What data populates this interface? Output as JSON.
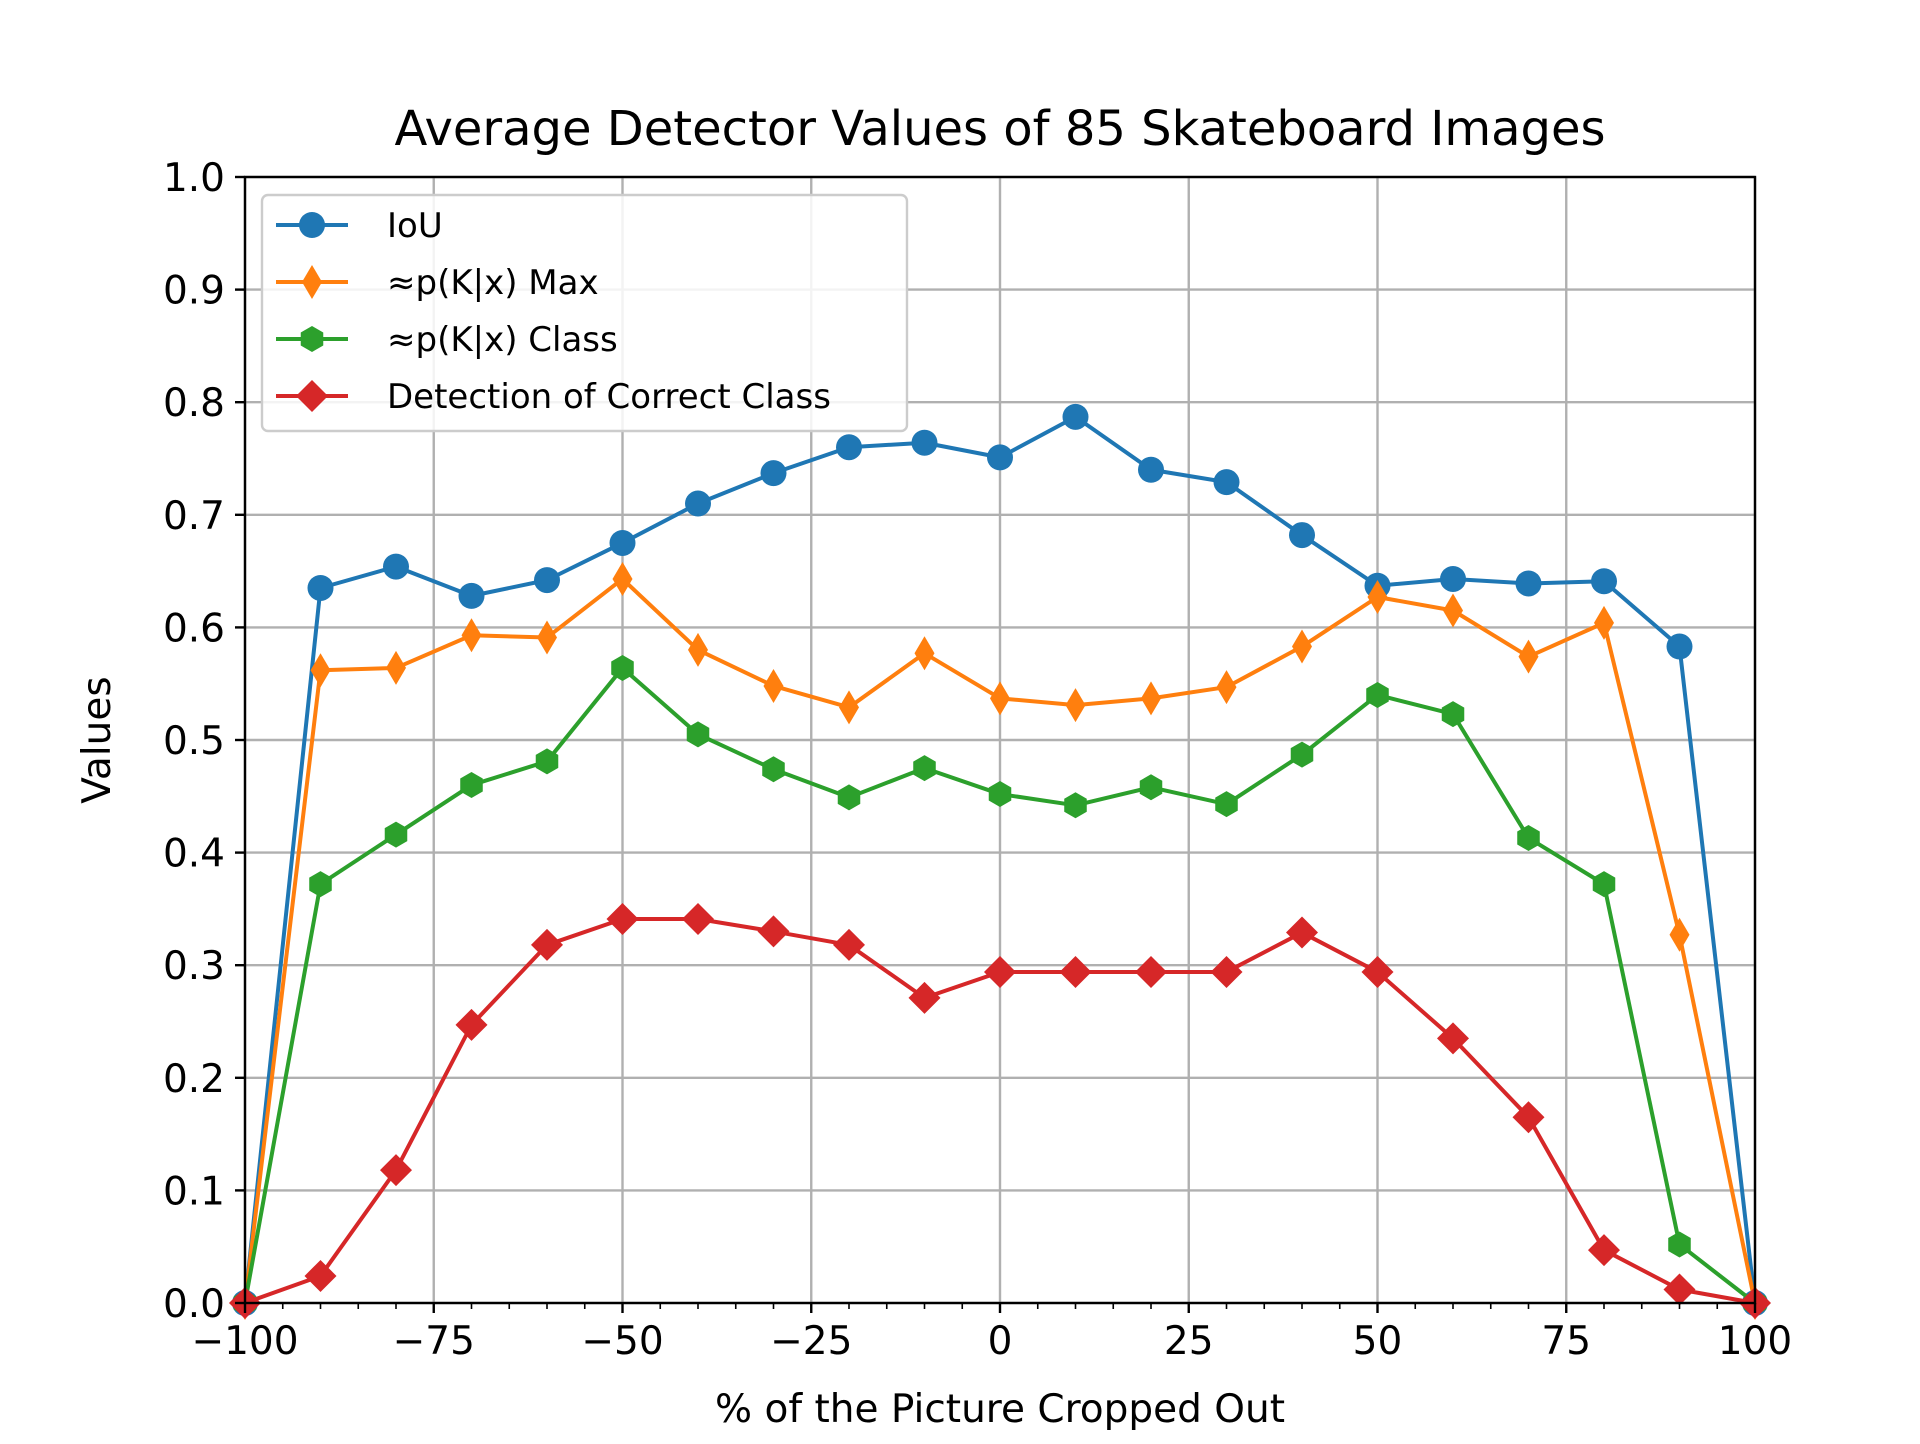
{
  "chart_data": {
    "type": "line",
    "title": "Average Detector Values of 85 Skateboard Images",
    "xlabel": "% of the Picture Cropped Out",
    "ylabel": "Values",
    "xlim": [
      -100,
      100
    ],
    "ylim": [
      0.0,
      1.0
    ],
    "x_ticks": [
      -100,
      -75,
      -50,
      -25,
      0,
      25,
      50,
      75,
      100
    ],
    "x_tick_labels": [
      "−100",
      "−75",
      "−50",
      "−25",
      "0",
      "25",
      "50",
      "75",
      "100"
    ],
    "x_minor_step": 5,
    "y_ticks": [
      0.0,
      0.1,
      0.2,
      0.3,
      0.4,
      0.5,
      0.6,
      0.7,
      0.8,
      0.9,
      1.0
    ],
    "y_tick_labels": [
      "0.0",
      "0.1",
      "0.2",
      "0.3",
      "0.4",
      "0.5",
      "0.6",
      "0.7",
      "0.8",
      "0.9",
      "1.0"
    ],
    "grid": true,
    "legend_position": "top-left",
    "x": [
      -100,
      -90,
      -80,
      -70,
      -60,
      -50,
      -40,
      -30,
      -20,
      -10,
      0,
      10,
      20,
      30,
      40,
      50,
      60,
      70,
      80,
      90,
      100
    ],
    "series": [
      {
        "name": "IoU",
        "color": "#1f77b4",
        "marker": "circle",
        "values": [
          0.0,
          0.635,
          0.654,
          0.628,
          0.642,
          0.675,
          0.71,
          0.737,
          0.76,
          0.764,
          0.751,
          0.787,
          0.74,
          0.729,
          0.682,
          0.637,
          0.643,
          0.639,
          0.641,
          0.583,
          0.0
        ]
      },
      {
        "name": "≈p(K|x) Max",
        "color": "#ff7f0e",
        "marker": "thin-diamond",
        "values": [
          0.0,
          0.562,
          0.564,
          0.593,
          0.591,
          0.643,
          0.58,
          0.548,
          0.529,
          0.577,
          0.537,
          0.531,
          0.537,
          0.547,
          0.583,
          0.627,
          0.615,
          0.574,
          0.604,
          0.327,
          0.0
        ]
      },
      {
        "name": "≈p(K|x) Class",
        "color": "#2ca02c",
        "marker": "hexagon",
        "values": [
          0.0,
          0.372,
          0.416,
          0.46,
          0.481,
          0.564,
          0.505,
          0.474,
          0.449,
          0.475,
          0.452,
          0.442,
          0.458,
          0.443,
          0.487,
          0.54,
          0.523,
          0.413,
          0.372,
          0.052,
          0.0
        ]
      },
      {
        "name": "Detection of Correct Class",
        "color": "#d62728",
        "marker": "diamond",
        "values": [
          0.0,
          0.024,
          0.118,
          0.247,
          0.318,
          0.341,
          0.341,
          0.33,
          0.318,
          0.271,
          0.294,
          0.294,
          0.294,
          0.294,
          0.329,
          0.294,
          0.235,
          0.165,
          0.047,
          0.012,
          0.0
        ]
      }
    ]
  }
}
